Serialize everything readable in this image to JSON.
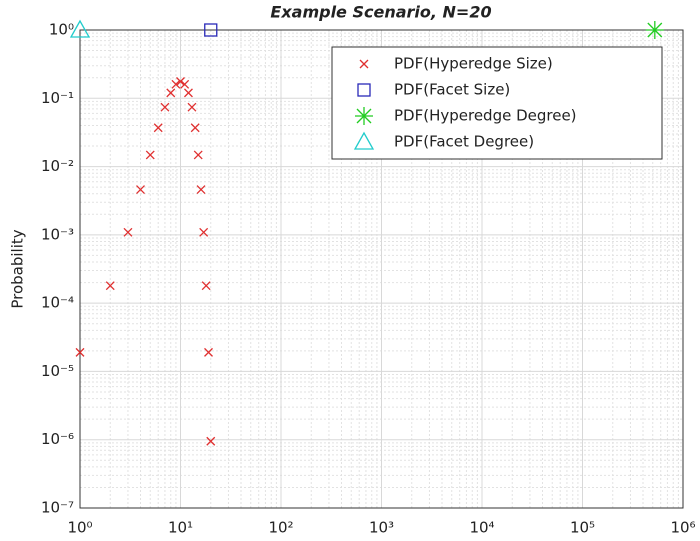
{
  "chart_data": {
    "type": "scatter",
    "title": "Example Scenario, N=20",
    "y_label": "Probability",
    "log_x": true,
    "log_y": true,
    "grid": true,
    "minor_grid": true,
    "legend": "northeast",
    "xlim": [
      1,
      1000000
    ],
    "xticks": [
      {
        "value": 1,
        "label": "10⁰"
      },
      {
        "value": 10,
        "label": "10¹"
      },
      {
        "value": 100,
        "label": "10²"
      },
      {
        "value": 1000,
        "label": "10³"
      },
      {
        "value": 10000,
        "label": "10⁴"
      },
      {
        "value": 100000,
        "label": "10⁵"
      },
      {
        "value": 1000000,
        "label": "10⁶"
      }
    ],
    "ylim": [
      1e-07,
      1
    ],
    "yticks": [
      {
        "value": 1e-07,
        "label": "10⁻⁷"
      },
      {
        "value": 1e-06,
        "label": "10⁻⁶"
      },
      {
        "value": 1e-05,
        "label": "10⁻⁵"
      },
      {
        "value": 0.0001,
        "label": "10⁻⁴"
      },
      {
        "value": 0.001,
        "label": "10⁻³"
      },
      {
        "value": 0.01,
        "label": "10⁻²"
      },
      {
        "value": 0.1,
        "label": "10⁻¹"
      },
      {
        "value": 1,
        "label": "10⁰"
      }
    ],
    "series": [
      {
        "name": "PDF(Hyperedge Size)",
        "color": "#e03030",
        "marker": "x",
        "x": [
          1,
          2,
          3,
          4,
          5,
          6,
          7,
          8,
          9,
          10,
          11,
          12,
          13,
          14,
          15,
          16,
          17,
          18,
          19,
          20
        ],
        "values": [
          1.9e-05,
          0.00018,
          0.00109,
          0.0046,
          0.0148,
          0.037,
          0.074,
          0.12,
          0.16,
          0.176,
          0.16,
          0.12,
          0.074,
          0.037,
          0.0148,
          0.0046,
          0.00109,
          0.00018,
          1.9e-05,
          9.5e-07
        ]
      },
      {
        "name": "PDF(Facet Size)",
        "color": "#2a2ab8",
        "marker": "square",
        "x": [
          20
        ],
        "values": [
          1
        ]
      },
      {
        "name": "PDF(Hyperedge Degree)",
        "color": "#22cc22",
        "marker": "asterisk",
        "x": [
          524288
        ],
        "values": [
          1
        ]
      },
      {
        "name": "PDF(Facet Degree)",
        "color": "#22cccc",
        "marker": "triangle",
        "x": [
          1
        ],
        "values": [
          1
        ]
      }
    ]
  }
}
